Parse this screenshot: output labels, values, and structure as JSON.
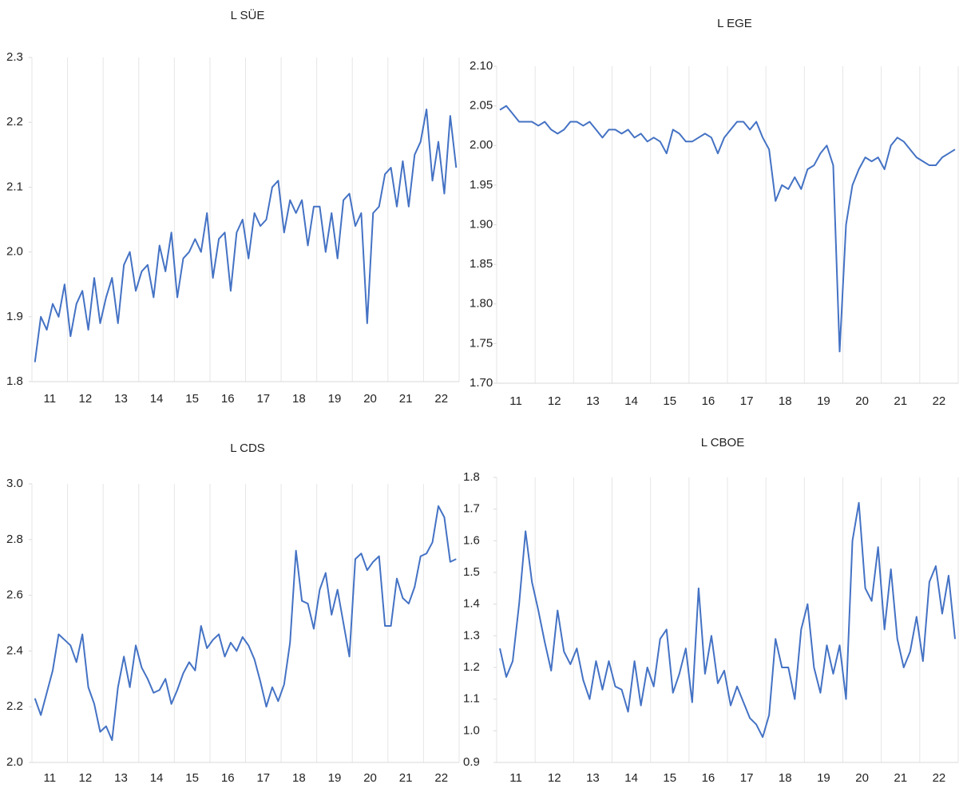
{
  "chart_data": [
    {
      "type": "line",
      "title": "L SÜE",
      "color": "#4472c4",
      "grid": true,
      "categories": [
        null,
        null,
        null,
        "11",
        null,
        null,
        null,
        null,
        null,
        "12",
        null,
        null,
        null,
        null,
        null,
        "13",
        null,
        null,
        null,
        null,
        null,
        "14",
        null,
        null,
        null,
        null,
        null,
        "15",
        null,
        null,
        null,
        null,
        null,
        "16",
        null,
        null,
        null,
        null,
        null,
        "17",
        null,
        null,
        null,
        null,
        null,
        "18",
        null,
        null,
        null,
        null,
        null,
        "19",
        null,
        null,
        null,
        null,
        null,
        "20",
        null,
        null,
        null,
        null,
        null,
        "21",
        null,
        null,
        null,
        null,
        null,
        "22",
        null,
        null
      ],
      "values": [
        1.83,
        1.9,
        1.88,
        1.92,
        1.9,
        1.95,
        1.87,
        1.92,
        1.94,
        1.88,
        1.96,
        1.89,
        1.93,
        1.96,
        1.89,
        1.98,
        2.0,
        1.94,
        1.97,
        1.98,
        1.93,
        2.01,
        1.97,
        2.03,
        1.93,
        1.99,
        2.0,
        2.02,
        2.0,
        2.06,
        1.96,
        2.02,
        2.03,
        1.94,
        2.03,
        2.05,
        1.99,
        2.06,
        2.04,
        2.05,
        2.1,
        2.11,
        2.03,
        2.08,
        2.06,
        2.08,
        2.01,
        2.07,
        2.07,
        2.0,
        2.06,
        1.99,
        2.08,
        2.09,
        2.04,
        2.06,
        1.89,
        2.06,
        2.07,
        2.12,
        2.13,
        2.07,
        2.14,
        2.07,
        2.15,
        2.17,
        2.22,
        2.11,
        2.17,
        2.09,
        2.21,
        2.13
      ],
      "ylim": [
        1.8,
        2.3
      ],
      "yticks": [
        1.8,
        1.9,
        {
          "value": 2.0,
          "label": "2.0"
        },
        2.1,
        2.2,
        2.3
      ]
    },
    {
      "type": "line",
      "title": "L EGE",
      "color": "#4472c4",
      "grid": true,
      "categories": [
        null,
        null,
        null,
        "11",
        null,
        null,
        null,
        null,
        null,
        "12",
        null,
        null,
        null,
        null,
        null,
        "13",
        null,
        null,
        null,
        null,
        null,
        "14",
        null,
        null,
        null,
        null,
        null,
        "15",
        null,
        null,
        null,
        null,
        null,
        "16",
        null,
        null,
        null,
        null,
        null,
        "17",
        null,
        null,
        null,
        null,
        null,
        "18",
        null,
        null,
        null,
        null,
        null,
        "19",
        null,
        null,
        null,
        null,
        null,
        "20",
        null,
        null,
        null,
        null,
        null,
        "21",
        null,
        null,
        null,
        null,
        null,
        "22",
        null,
        null
      ],
      "values": [
        2.045,
        2.05,
        2.04,
        2.03,
        2.03,
        2.03,
        2.025,
        2.03,
        2.02,
        2.015,
        2.02,
        2.03,
        2.03,
        2.025,
        2.03,
        2.02,
        2.01,
        2.02,
        2.02,
        2.015,
        2.02,
        2.01,
        2.015,
        2.005,
        2.01,
        2.005,
        1.99,
        2.02,
        2.015,
        2.005,
        2.005,
        2.01,
        2.015,
        2.01,
        1.99,
        2.01,
        2.02,
        2.03,
        2.03,
        2.02,
        2.03,
        2.01,
        1.995,
        1.93,
        1.95,
        1.945,
        1.96,
        1.945,
        1.97,
        1.975,
        1.99,
        2.0,
        1.975,
        1.74,
        1.9,
        1.95,
        1.97,
        1.985,
        1.98,
        1.985,
        1.97,
        2.0,
        2.01,
        2.005,
        1.995,
        1.985,
        1.98,
        1.975,
        1.975,
        1.985,
        1.99,
        1.995
      ],
      "ylim": [
        1.7,
        2.1
      ],
      "yticks": [
        {
          "value": 1.7,
          "label": "1.70"
        },
        1.75,
        {
          "value": 1.8,
          "label": "1.80"
        },
        1.85,
        {
          "value": 1.9,
          "label": "1.90"
        },
        1.95,
        {
          "value": 2.0,
          "label": "2.00"
        },
        2.05,
        {
          "value": 2.1,
          "label": "2.10"
        }
      ]
    },
    {
      "type": "line",
      "title": "L CDS",
      "color": "#4472c4",
      "grid": true,
      "categories": [
        null,
        null,
        null,
        "11",
        null,
        null,
        null,
        null,
        null,
        "12",
        null,
        null,
        null,
        null,
        null,
        "13",
        null,
        null,
        null,
        null,
        null,
        "14",
        null,
        null,
        null,
        null,
        null,
        "15",
        null,
        null,
        null,
        null,
        null,
        "16",
        null,
        null,
        null,
        null,
        null,
        "17",
        null,
        null,
        null,
        null,
        null,
        "18",
        null,
        null,
        null,
        null,
        null,
        "19",
        null,
        null,
        null,
        null,
        null,
        "20",
        null,
        null,
        null,
        null,
        null,
        "21",
        null,
        null,
        null,
        null,
        null,
        "22",
        null,
        null
      ],
      "values": [
        2.23,
        2.17,
        2.25,
        2.33,
        2.46,
        2.44,
        2.42,
        2.36,
        2.46,
        2.27,
        2.21,
        2.11,
        2.13,
        2.08,
        2.27,
        2.38,
        2.27,
        2.42,
        2.34,
        2.3,
        2.25,
        2.26,
        2.3,
        2.21,
        2.26,
        2.32,
        2.36,
        2.33,
        2.49,
        2.41,
        2.44,
        2.46,
        2.38,
        2.43,
        2.4,
        2.45,
        2.42,
        2.37,
        2.29,
        2.2,
        2.27,
        2.22,
        2.28,
        2.43,
        2.76,
        2.58,
        2.57,
        2.48,
        2.62,
        2.68,
        2.53,
        2.62,
        2.5,
        2.38,
        2.73,
        2.75,
        2.69,
        2.72,
        2.74,
        2.49,
        2.49,
        2.66,
        2.59,
        2.57,
        2.63,
        2.74,
        2.75,
        2.79,
        2.92,
        2.88,
        2.72,
        2.73
      ],
      "ylim": [
        2.0,
        3.0
      ],
      "yticks": [
        {
          "value": 2.0,
          "label": "2.0"
        },
        2.2,
        2.4,
        2.6,
        2.8,
        {
          "value": 3.0,
          "label": "3.0"
        }
      ]
    },
    {
      "type": "line",
      "title": "L CBOE",
      "color": "#4472c4",
      "grid": true,
      "categories": [
        null,
        null,
        null,
        "11",
        null,
        null,
        null,
        null,
        null,
        "12",
        null,
        null,
        null,
        null,
        null,
        "13",
        null,
        null,
        null,
        null,
        null,
        "14",
        null,
        null,
        null,
        null,
        null,
        "15",
        null,
        null,
        null,
        null,
        null,
        "16",
        null,
        null,
        null,
        null,
        null,
        "17",
        null,
        null,
        null,
        null,
        null,
        "18",
        null,
        null,
        null,
        null,
        null,
        "19",
        null,
        null,
        null,
        null,
        null,
        "20",
        null,
        null,
        null,
        null,
        null,
        "21",
        null,
        null,
        null,
        null,
        null,
        "22",
        null,
        null
      ],
      "values": [
        1.26,
        1.17,
        1.22,
        1.4,
        1.63,
        1.47,
        1.38,
        1.28,
        1.19,
        1.38,
        1.25,
        1.21,
        1.26,
        1.16,
        1.1,
        1.22,
        1.13,
        1.22,
        1.14,
        1.13,
        1.06,
        1.22,
        1.08,
        1.2,
        1.14,
        1.29,
        1.32,
        1.12,
        1.18,
        1.26,
        1.09,
        1.45,
        1.18,
        1.3,
        1.15,
        1.19,
        1.08,
        1.14,
        1.09,
        1.04,
        1.02,
        0.98,
        1.05,
        1.29,
        1.2,
        1.2,
        1.1,
        1.32,
        1.4,
        1.2,
        1.12,
        1.27,
        1.18,
        1.27,
        1.1,
        1.6,
        1.72,
        1.45,
        1.41,
        1.58,
        1.32,
        1.51,
        1.29,
        1.2,
        1.25,
        1.36,
        1.22,
        1.47,
        1.52,
        1.37,
        1.49,
        1.29
      ],
      "ylim": [
        0.9,
        1.8
      ],
      "yticks": [
        0.9,
        {
          "value": 1.0,
          "label": "1.0"
        },
        1.1,
        1.2,
        1.3,
        1.4,
        1.5,
        1.6,
        1.7,
        1.8
      ]
    }
  ]
}
